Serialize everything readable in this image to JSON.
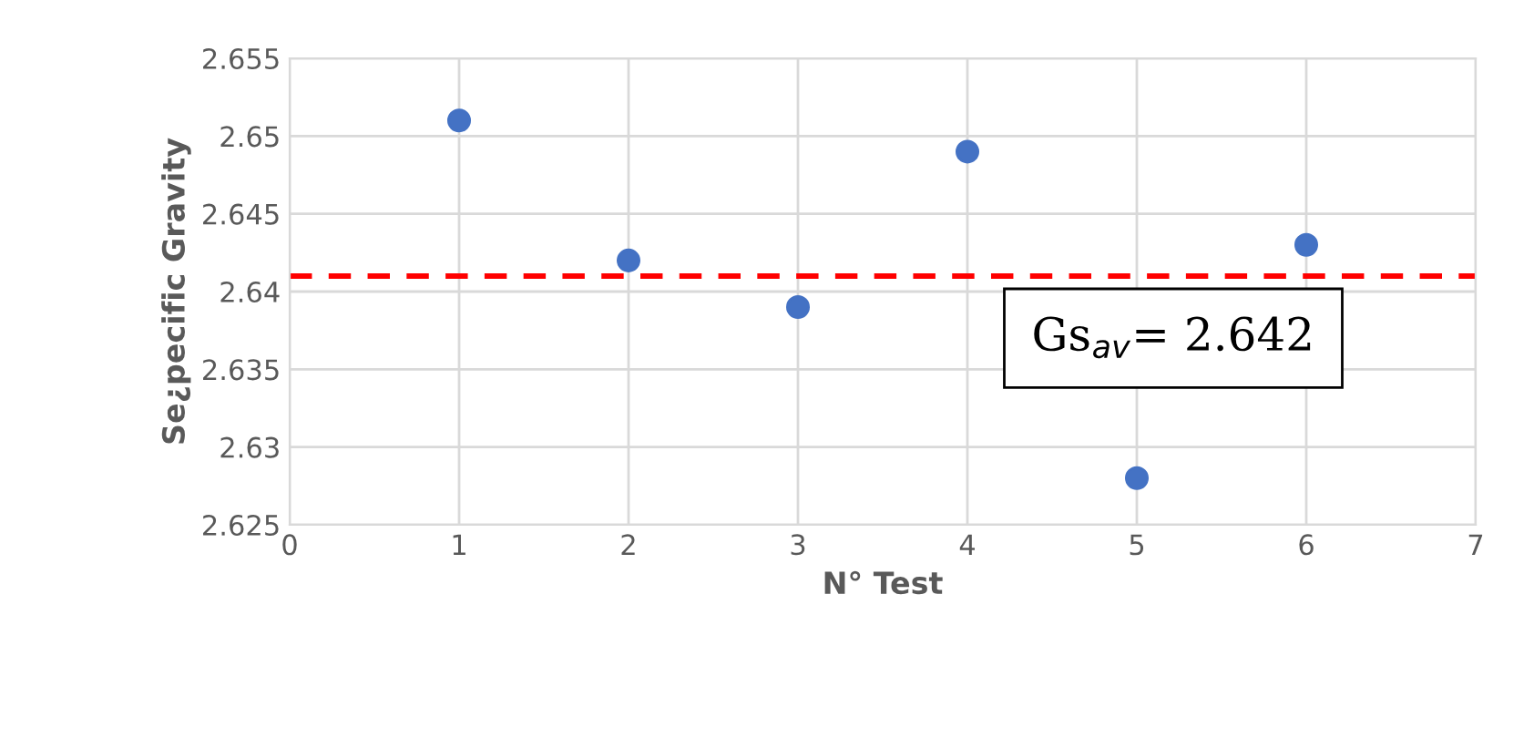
{
  "chart_data": {
    "type": "scatter",
    "xlabel": "N° Test",
    "ylabel": "Se¿pecific Gravity",
    "x": [
      1,
      2,
      3,
      4,
      5,
      6
    ],
    "series": [
      {
        "color": "#4472c4",
        "values": [
          2.651,
          2.642,
          2.639,
          2.649,
          2.628,
          2.643
        ]
      }
    ],
    "xlim": [
      0,
      7
    ],
    "xticks": [
      0,
      1,
      2,
      3,
      4,
      5,
      6,
      7
    ],
    "ylim": [
      2.625,
      2.655
    ],
    "yticks": [
      {
        "value": 2.625,
        "label": "2.625"
      },
      {
        "value": 2.63,
        "label": "2.63"
      },
      {
        "value": 2.635,
        "label": "2.635"
      },
      {
        "value": 2.64,
        "label": "2.64"
      },
      {
        "value": 2.645,
        "label": "2.645"
      },
      {
        "value": 2.65,
        "label": "2.65"
      },
      {
        "value": 2.655,
        "label": "2.655"
      }
    ],
    "ref_lines": [
      {
        "axis": "y",
        "value": 2.641,
        "color": "#ff0000",
        "line_style": "dashed"
      }
    ],
    "annotations": [
      "Gs$_{av}$= 2.642"
    ],
    "grid": true,
    "marker": "circle",
    "legend": false
  }
}
